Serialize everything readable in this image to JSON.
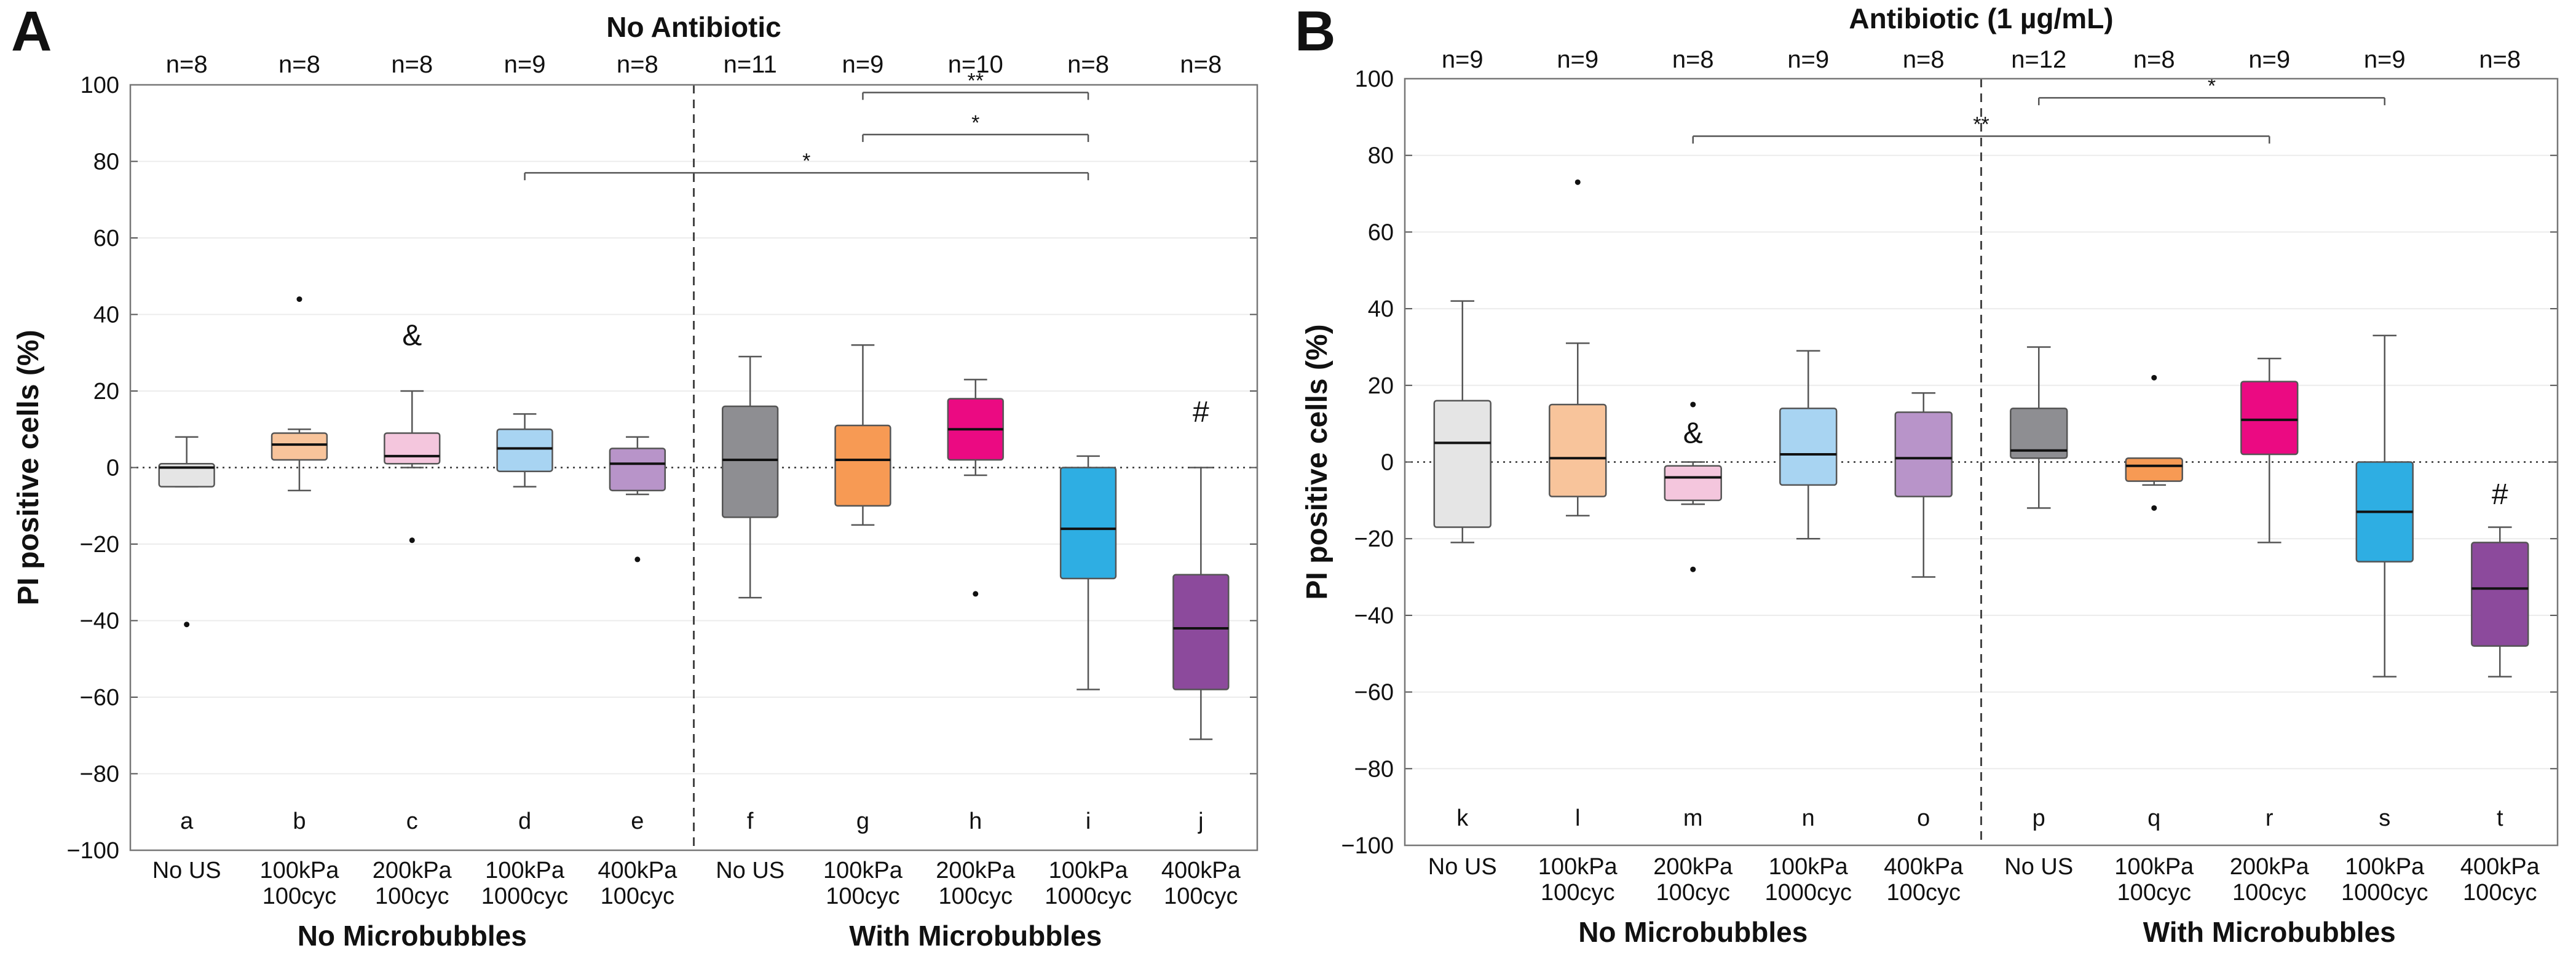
{
  "chart_data": [
    {
      "type": "box",
      "panel_label": "A",
      "title": "No Antibiotic",
      "ylabel": "PI positive cells  (%)",
      "ylim": [
        -100,
        100
      ],
      "yticks": [
        -100,
        -80,
        -60,
        -40,
        -20,
        0,
        20,
        40,
        60,
        80,
        100
      ],
      "ytick_labels": [
        "−100",
        "−80",
        "−60",
        "−40",
        "−20",
        "0",
        "20",
        "40",
        "60",
        "80",
        "100"
      ],
      "group_labels": [
        "No Microbubbles",
        "With Microbubbles"
      ],
      "categories": [
        {
          "line1": "No US",
          "line2": ""
        },
        {
          "line1": "100kPa",
          "line2": "100cyc"
        },
        {
          "line1": "200kPa",
          "line2": "100cyc"
        },
        {
          "line1": "100kPa",
          "line2": "1000cyc"
        },
        {
          "line1": "400kPa",
          "line2": "100cyc"
        },
        {
          "line1": "No US",
          "line2": ""
        },
        {
          "line1": "100kPa",
          "line2": "100cyc"
        },
        {
          "line1": "200kPa",
          "line2": "100cyc"
        },
        {
          "line1": "100kPa",
          "line2": "1000cyc"
        },
        {
          "line1": "400kPa",
          "line2": "100cyc"
        }
      ],
      "n_labels": [
        "n=8",
        "n=8",
        "n=8",
        "n=9",
        "n=8",
        "n=11",
        "n=9",
        "n=10",
        "n=8",
        "n=8"
      ],
      "letters": [
        "a",
        "b",
        "c",
        "d",
        "e",
        "f",
        "g",
        "h",
        "i",
        "j"
      ],
      "colors": [
        "#e5e5e5",
        "#f8c49b",
        "#f4c6dd",
        "#a8d4f2",
        "#b894c9",
        "#8e8e92",
        "#f79a54",
        "#eb0a82",
        "#2eaee3",
        "#8c4a9c"
      ],
      "boxes": [
        {
          "whislo": -5,
          "q1": -5,
          "med": 0,
          "q3": 1,
          "whishi": 8,
          "fliers": [
            -41
          ]
        },
        {
          "whislo": -6,
          "q1": 2,
          "med": 6,
          "q3": 9,
          "whishi": 10,
          "fliers": [
            44
          ]
        },
        {
          "whislo": 0,
          "q1": 1,
          "med": 3,
          "q3": 9,
          "whishi": 20,
          "fliers": [
            -19
          ]
        },
        {
          "whislo": -5,
          "q1": -1,
          "med": 5,
          "q3": 10,
          "whishi": 14,
          "fliers": []
        },
        {
          "whislo": -7,
          "q1": -6,
          "med": 1,
          "q3": 5,
          "whishi": 8,
          "fliers": [
            -24
          ]
        },
        {
          "whislo": -34,
          "q1": -13,
          "med": 2,
          "q3": 16,
          "whishi": 29,
          "fliers": []
        },
        {
          "whislo": -15,
          "q1": -10,
          "med": 2,
          "q3": 11,
          "whishi": 32,
          "fliers": []
        },
        {
          "whislo": -2,
          "q1": 2,
          "med": 10,
          "q3": 18,
          "whishi": 23,
          "fliers": [
            -33
          ]
        },
        {
          "whislo": -58,
          "q1": -29,
          "med": -16,
          "q3": 0,
          "whishi": 3,
          "fliers": []
        },
        {
          "whislo": -71,
          "q1": -58,
          "med": -42,
          "q3": -28,
          "whishi": 0,
          "fliers": []
        }
      ],
      "annotations": [
        {
          "box": 2,
          "y": 32,
          "text": "&"
        },
        {
          "box": 9,
          "y": 12,
          "text": "#"
        }
      ],
      "significance": [
        {
          "from": 6,
          "to": 8,
          "y": 98,
          "text": "**"
        },
        {
          "from": 6,
          "to": 8,
          "y": 87,
          "text": "*"
        },
        {
          "from": 3,
          "to": 8,
          "y": 77,
          "text": "*"
        }
      ]
    },
    {
      "type": "box",
      "panel_label": "B",
      "title": "Antibiotic (1 µg/mL)",
      "ylabel": "PI positive cells  (%)",
      "ylim": [
        -100,
        100
      ],
      "yticks": [
        -100,
        -80,
        -60,
        -40,
        -20,
        0,
        20,
        40,
        60,
        80,
        100
      ],
      "ytick_labels": [
        "−100",
        "−80",
        "−60",
        "−40",
        "−20",
        "0",
        "20",
        "40",
        "60",
        "80",
        "100"
      ],
      "group_labels": [
        "No Microbubbles",
        "With Microbubbles"
      ],
      "categories": [
        {
          "line1": "No US",
          "line2": ""
        },
        {
          "line1": "100kPa",
          "line2": "100cyc"
        },
        {
          "line1": "200kPa",
          "line2": "100cyc"
        },
        {
          "line1": "100kPa",
          "line2": "1000cyc"
        },
        {
          "line1": "400kPa",
          "line2": "100cyc"
        },
        {
          "line1": "No US",
          "line2": ""
        },
        {
          "line1": "100kPa",
          "line2": "100cyc"
        },
        {
          "line1": "200kPa",
          "line2": "100cyc"
        },
        {
          "line1": "100kPa",
          "line2": "1000cyc"
        },
        {
          "line1": "400kPa",
          "line2": "100cyc"
        }
      ],
      "n_labels": [
        "n=9",
        "n=9",
        "n=8",
        "n=9",
        "n=8",
        "n=12",
        "n=8",
        "n=9",
        "n=9",
        "n=8"
      ],
      "letters": [
        "k",
        "l",
        "m",
        "n",
        "o",
        "p",
        "q",
        "r",
        "s",
        "t"
      ],
      "colors": [
        "#e5e5e5",
        "#f8c49b",
        "#f4c6dd",
        "#a8d4f2",
        "#b894c9",
        "#8e8e92",
        "#f79a54",
        "#eb0a82",
        "#2eaee3",
        "#8c4a9c"
      ],
      "boxes": [
        {
          "whislo": -21,
          "q1": -17,
          "med": 5,
          "q3": 16,
          "whishi": 42,
          "fliers": []
        },
        {
          "whislo": -14,
          "q1": -9,
          "med": 1,
          "q3": 15,
          "whishi": 31,
          "fliers": [
            73
          ]
        },
        {
          "whislo": -11,
          "q1": -10,
          "med": -4,
          "q3": -1,
          "whishi": 0,
          "fliers": [
            15,
            -28
          ]
        },
        {
          "whislo": -20,
          "q1": -6,
          "med": 2,
          "q3": 14,
          "whishi": 29,
          "fliers": []
        },
        {
          "whislo": -30,
          "q1": -9,
          "med": 1,
          "q3": 13,
          "whishi": 18,
          "fliers": []
        },
        {
          "whislo": -12,
          "q1": 1,
          "med": 3,
          "q3": 14,
          "whishi": 30,
          "fliers": []
        },
        {
          "whislo": -6,
          "q1": -5,
          "med": -1,
          "q3": 1,
          "whishi": 1,
          "fliers": [
            22,
            -12
          ]
        },
        {
          "whislo": -21,
          "q1": 2,
          "med": 11,
          "q3": 21,
          "whishi": 27,
          "fliers": []
        },
        {
          "whislo": -56,
          "q1": -26,
          "med": -13,
          "q3": 0,
          "whishi": 33,
          "fliers": []
        },
        {
          "whislo": -56,
          "q1": -48,
          "med": -33,
          "q3": -21,
          "whishi": -17,
          "fliers": []
        }
      ],
      "annotations": [
        {
          "box": 2,
          "y": 5,
          "text": "&"
        },
        {
          "box": 9,
          "y": -11,
          "text": "#"
        }
      ],
      "significance": [
        {
          "from": 5,
          "to": 8,
          "y": 95,
          "text": "*"
        },
        {
          "from": 2,
          "to": 7,
          "y": 85,
          "text": "**"
        }
      ]
    }
  ]
}
